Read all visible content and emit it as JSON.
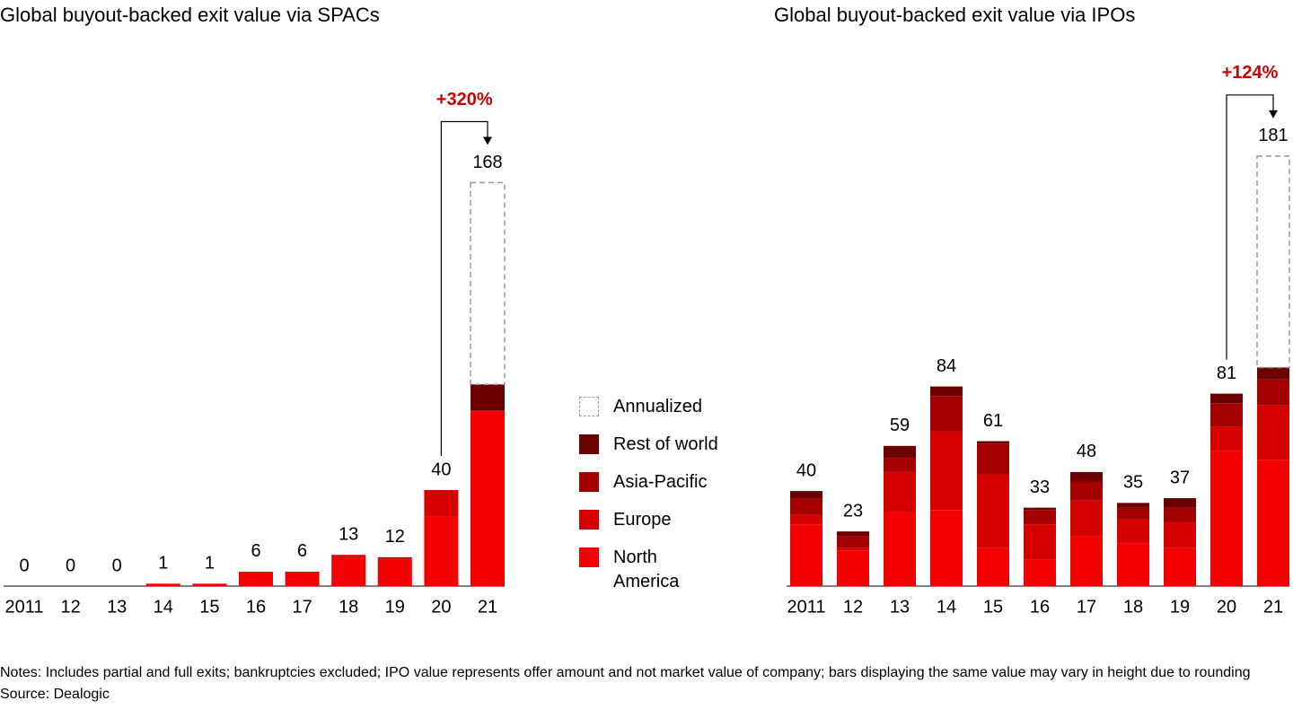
{
  "chart_data": [
    {
      "type": "stacked-bar",
      "title": "Global buyout-backed exit value via SPACs",
      "categories": [
        "2011",
        "12",
        "13",
        "14",
        "15",
        "16",
        "17",
        "18",
        "19",
        "20",
        "21"
      ],
      "series": [
        {
          "name": "North America",
          "color": "#f50000",
          "values": [
            0,
            0,
            0,
            1,
            1,
            6,
            6,
            12,
            11,
            29,
            73
          ]
        },
        {
          "name": "Europe",
          "color": "#d60000",
          "values": [
            0,
            0,
            0,
            0,
            0,
            0,
            0,
            1,
            0.5,
            11,
            0
          ]
        },
        {
          "name": "Asia-Pacific",
          "color": "#a50000",
          "values": [
            0,
            0,
            0,
            0,
            0,
            0,
            0,
            0,
            0.5,
            0,
            0
          ]
        },
        {
          "name": "Rest of world",
          "color": "#6b0000",
          "values": [
            0,
            0,
            0,
            0,
            0,
            0,
            0,
            0,
            0,
            0,
            11
          ]
        },
        {
          "name": "Annualized",
          "color": "#999999",
          "dashed": true,
          "values": [
            null,
            null,
            null,
            null,
            null,
            null,
            null,
            null,
            null,
            null,
            84
          ]
        }
      ],
      "totals": [
        0,
        0,
        0,
        1,
        1,
        6,
        6,
        13,
        12,
        40,
        168
      ],
      "annotation": "+320%",
      "ylim": [
        0,
        188
      ]
    },
    {
      "type": "stacked-bar",
      "title": "Global buyout-backed exit value via IPOs",
      "categories": [
        "2011",
        "12",
        "13",
        "14",
        "15",
        "16",
        "17",
        "18",
        "19",
        "20",
        "21"
      ],
      "series": [
        {
          "name": "North America",
          "color": "#f50000",
          "values": [
            26,
            15,
            31,
            32,
            16,
            11,
            21,
            18,
            16,
            57,
            53
          ]
        },
        {
          "name": "Europe",
          "color": "#d60000",
          "values": [
            4,
            1,
            17,
            33,
            31,
            15,
            15,
            10,
            11,
            10,
            23
          ]
        },
        {
          "name": "Asia-Pacific",
          "color": "#a50000",
          "values": [
            7,
            5,
            6,
            15,
            13,
            6,
            8,
            5,
            6,
            10,
            11
          ]
        },
        {
          "name": "Rest of world",
          "color": "#6b0000",
          "values": [
            3,
            2,
            5,
            4,
            1,
            1,
            4,
            2,
            4,
            4,
            5
          ]
        },
        {
          "name": "Annualized",
          "color": "#999999",
          "dashed": true,
          "values": [
            null,
            null,
            null,
            null,
            null,
            null,
            null,
            null,
            null,
            null,
            89
          ]
        }
      ],
      "totals": [
        40,
        23,
        59,
        84,
        61,
        33,
        48,
        35,
        37,
        81,
        181
      ],
      "annotation": "+124%",
      "ylim": [
        0,
        190
      ]
    }
  ],
  "notes": "Notes: Includes partial and full exits; bankruptcies excluded; IPO value represents offer amount and not market value of company; bars displaying the same value may vary in height due to rounding",
  "source": "Source: Dealogic"
}
